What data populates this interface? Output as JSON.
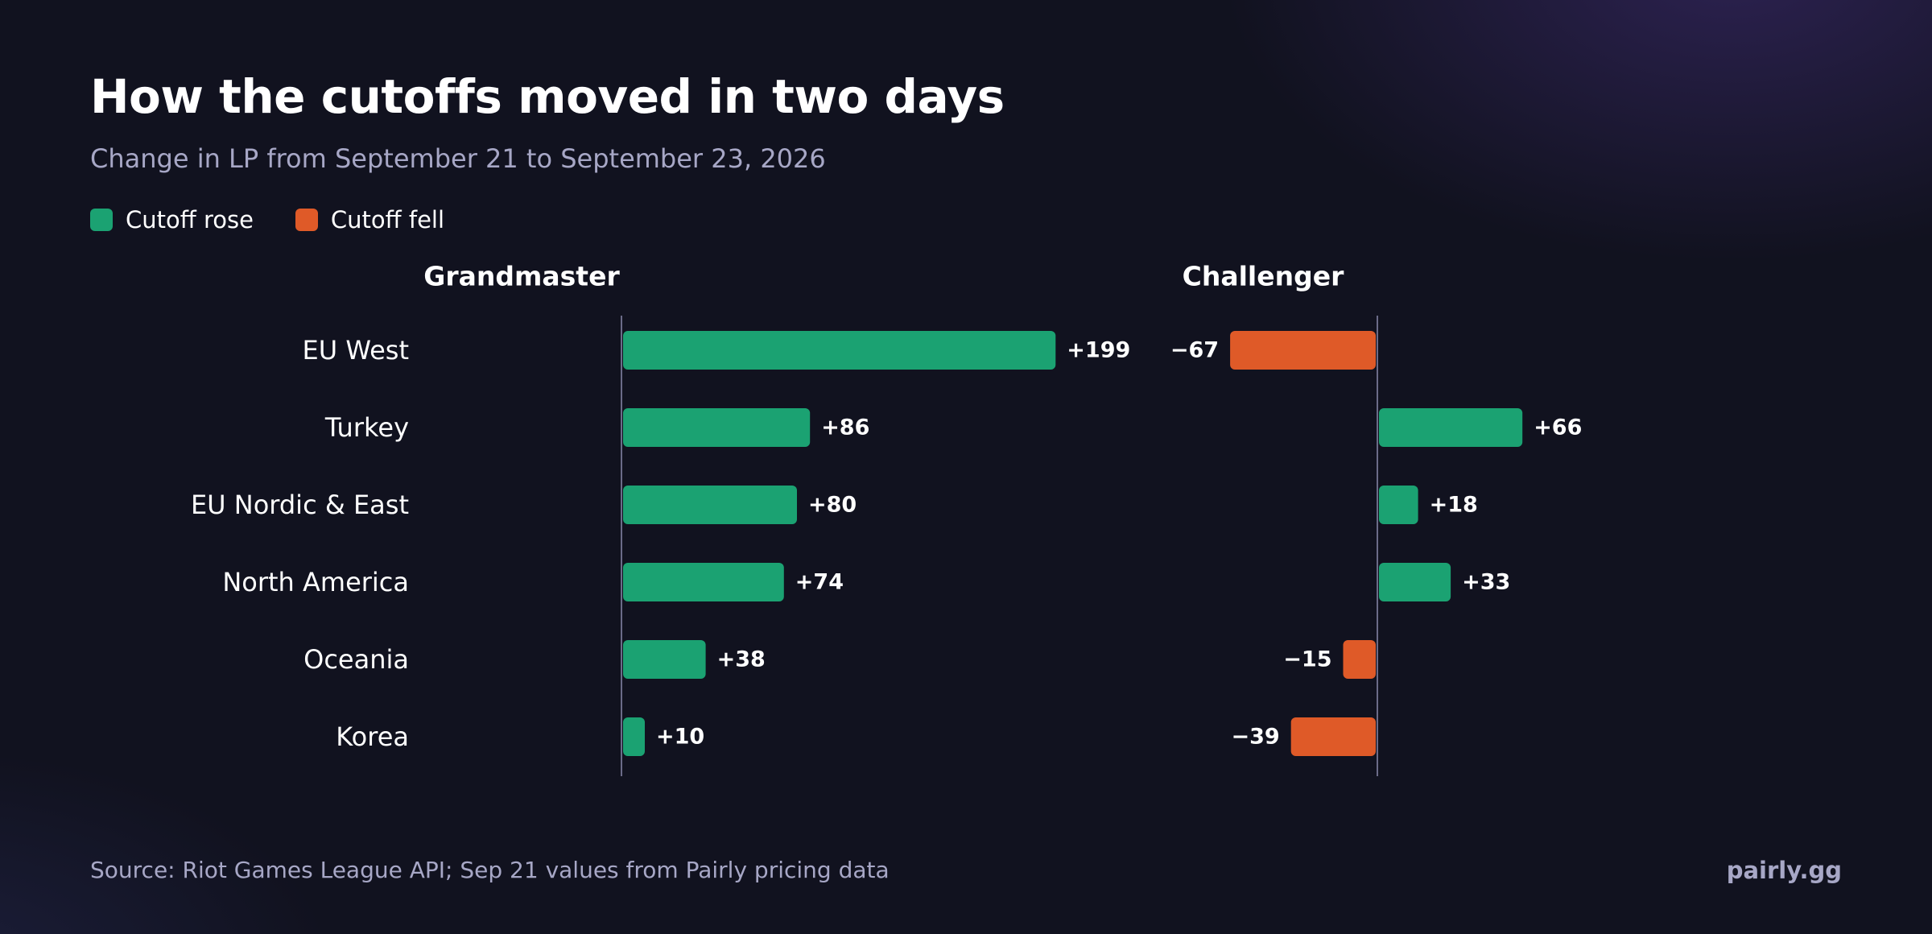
{
  "title": "How the cutoffs moved in two days",
  "subtitle": "Change in LP from September 21 to September 23, 2026",
  "legend": [
    {
      "label": "Cutoff rose",
      "color": "#1ba272"
    },
    {
      "label": "Cutoff fell",
      "color": "#df5a28"
    }
  ],
  "colors": {
    "positive": "#1ba272",
    "negative": "#df5a28",
    "axis": "#6b6b88"
  },
  "chart_data": {
    "type": "bar",
    "orientation": "horizontal",
    "categories": [
      "EU West",
      "Turkey",
      "EU Nordic & East",
      "North America",
      "Oceania",
      "Korea"
    ],
    "panels": [
      {
        "name": "Grandmaster",
        "values": [
          199,
          86,
          80,
          74,
          38,
          10
        ],
        "labels": [
          "+199",
          "+86",
          "+80",
          "+74",
          "+38",
          "+10"
        ]
      },
      {
        "name": "Challenger",
        "values": [
          -67,
          66,
          18,
          33,
          -15,
          -39
        ],
        "labels": [
          "−67",
          "+66",
          "+18",
          "+33",
          "−15",
          "−39"
        ]
      }
    ]
  },
  "footer": {
    "source": "Source: Riot Games League API; Sep 21 values from Pairly pricing data",
    "brand": "pairly.gg"
  }
}
